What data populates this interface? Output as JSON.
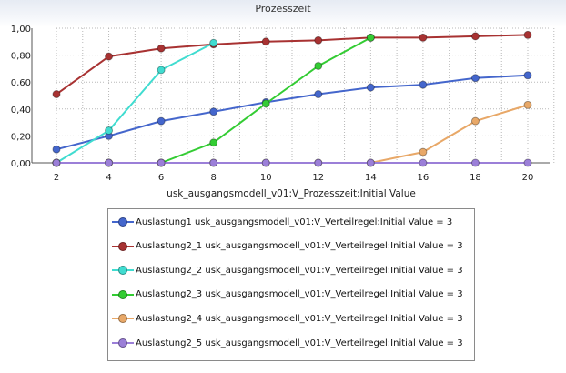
{
  "chart_data": {
    "type": "line",
    "title": "Prozesszeit",
    "xlabel": "usk_ausgangsmodell_v01:V_Prozesszeit:Initial Value",
    "ylabel": "",
    "x": [
      2,
      4,
      6,
      8,
      10,
      12,
      14,
      16,
      18,
      20
    ],
    "xlim": [
      2,
      20
    ],
    "ylim": [
      0,
      1
    ],
    "y_tick_labels": [
      "0,00",
      "0,20",
      "0,40",
      "0,60",
      "0,80",
      "1,00"
    ],
    "x_tick_labels": [
      "2",
      "4",
      "6",
      "8",
      "10",
      "12",
      "14",
      "16",
      "18",
      "20"
    ],
    "grid": true,
    "legend_position": "bottom",
    "series": [
      {
        "name": "Auslastung1 usk_ausgangsmodell_v01:V_Verteilregel:Initial Value = 3",
        "color": "#4466cc",
        "values": [
          0.1,
          0.2,
          0.31,
          0.38,
          0.45,
          0.51,
          0.56,
          0.58,
          0.63,
          0.65
        ]
      },
      {
        "name": "Auslastung2_1 usk_ausgangsmodell_v01:V_Verteilregel:Initial Value = 3",
        "color": "#a83232",
        "values": [
          0.51,
          0.79,
          0.85,
          0.88,
          0.9,
          0.91,
          0.93,
          0.93,
          0.94,
          0.95
        ]
      },
      {
        "name": "Auslastung2_2 usk_ausgangsmodell_v01:V_Verteilregel:Initial Value = 3",
        "color": "#40dcd0",
        "values": [
          0.0,
          0.24,
          0.69,
          0.89,
          null,
          null,
          null,
          null,
          null,
          null
        ]
      },
      {
        "name": "Auslastung2_3 usk_ausgangsmodell_v01:V_Verteilregel:Initial Value = 3",
        "color": "#33cc33",
        "values": [
          0.0,
          0.0,
          0.0,
          0.15,
          0.44,
          0.72,
          0.93,
          null,
          null,
          null
        ]
      },
      {
        "name": "Auslastung2_4 usk_ausgangsmodell_v01:V_Verteilregel:Initial Value = 3",
        "color": "#e8a868",
        "values": [
          0.0,
          0.0,
          0.0,
          0.0,
          0.0,
          0.0,
          0.0,
          0.08,
          0.31,
          0.43
        ]
      },
      {
        "name": "Auslastung2_5 usk_ausgangsmodell_v01:V_Verteilregel:Initial Value = 3",
        "color": "#9b7fd8",
        "values": [
          0.0,
          0.0,
          0.0,
          0.0,
          0.0,
          0.0,
          0.0,
          0.0,
          0.0,
          0.0
        ]
      }
    ]
  }
}
